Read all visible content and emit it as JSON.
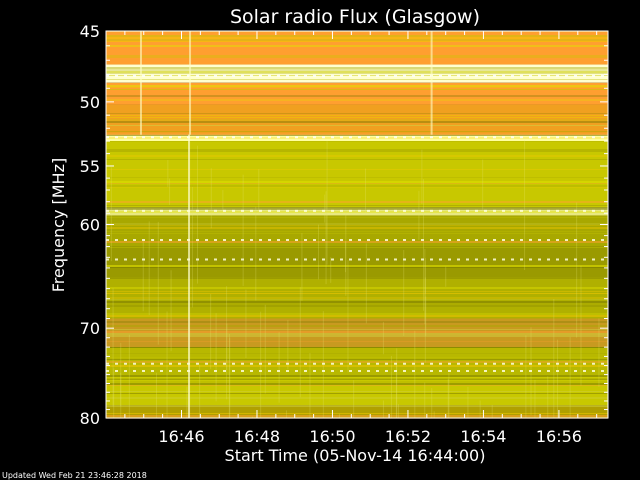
{
  "chart_data": {
    "type": "heatmap",
    "title": "Solar radio Flux (Glasgow)",
    "xlabel": "Start Time (05-Nov-14 16:44:00)",
    "ylabel": "Frequency [MHz]",
    "xlim_minutes": [
      0,
      13.3
    ],
    "ylim": [
      45,
      80
    ],
    "y_log_scale": true,
    "y_ticks": [
      "45",
      "50",
      "55",
      "60",
      "70",
      "80"
    ],
    "x_ticks": [
      "16:46",
      "16:48",
      "16:50",
      "16:52",
      "16:54",
      "16:56"
    ],
    "colorscale": [
      "#7a7a00",
      "#a8a800",
      "#c8c800",
      "#e0e000",
      "#f2c800",
      "#ff9f30",
      "#ffffc8"
    ],
    "bands": [
      {
        "from_mhz": 45.0,
        "to_mhz": 47.3,
        "color": "#ff9f30"
      },
      {
        "from_mhz": 47.3,
        "to_mhz": 48.6,
        "color": "#ffffd0"
      },
      {
        "from_mhz": 48.6,
        "to_mhz": 50.2,
        "color": "#ff9f30"
      },
      {
        "from_mhz": 50.2,
        "to_mhz": 52.5,
        "color": "#f0a020"
      },
      {
        "from_mhz": 52.5,
        "to_mhz": 53.0,
        "color": "#ffffa0"
      },
      {
        "from_mhz": 53.0,
        "to_mhz": 58.5,
        "color": "#c8c800"
      },
      {
        "from_mhz": 58.5,
        "to_mhz": 59.2,
        "color": "#e8e880"
      },
      {
        "from_mhz": 59.2,
        "to_mhz": 62.0,
        "color": "#a8a800"
      },
      {
        "from_mhz": 62.0,
        "to_mhz": 65.0,
        "color": "#9a9a00"
      },
      {
        "from_mhz": 65.0,
        "to_mhz": 69.0,
        "color": "#b0b000"
      },
      {
        "from_mhz": 69.0,
        "to_mhz": 72.0,
        "color": "#c89a20"
      },
      {
        "from_mhz": 72.0,
        "to_mhz": 75.5,
        "color": "#b8b800"
      },
      {
        "from_mhz": 75.5,
        "to_mhz": 78.5,
        "color": "#c8c800"
      },
      {
        "from_mhz": 78.5,
        "to_mhz": 80.0,
        "color": "#b0a000"
      }
    ],
    "flicker_lines": [
      {
        "mhz": 48.1,
        "color": "#ffffff"
      },
      {
        "mhz": 52.7,
        "color": "#ffffff"
      },
      {
        "mhz": 58.8,
        "color": "#ffffe0"
      },
      {
        "mhz": 61.4,
        "color": "#ffffe0"
      },
      {
        "mhz": 63.2,
        "color": "#ffffe0"
      },
      {
        "mhz": 73.8,
        "color": "#ffffe0"
      },
      {
        "mhz": 74.6,
        "color": "#ffffe0"
      }
    ],
    "event_time_minutes": 2.2
  },
  "footer": {
    "updated": "Updated Wed Feb 21 23:46:28 2018"
  }
}
